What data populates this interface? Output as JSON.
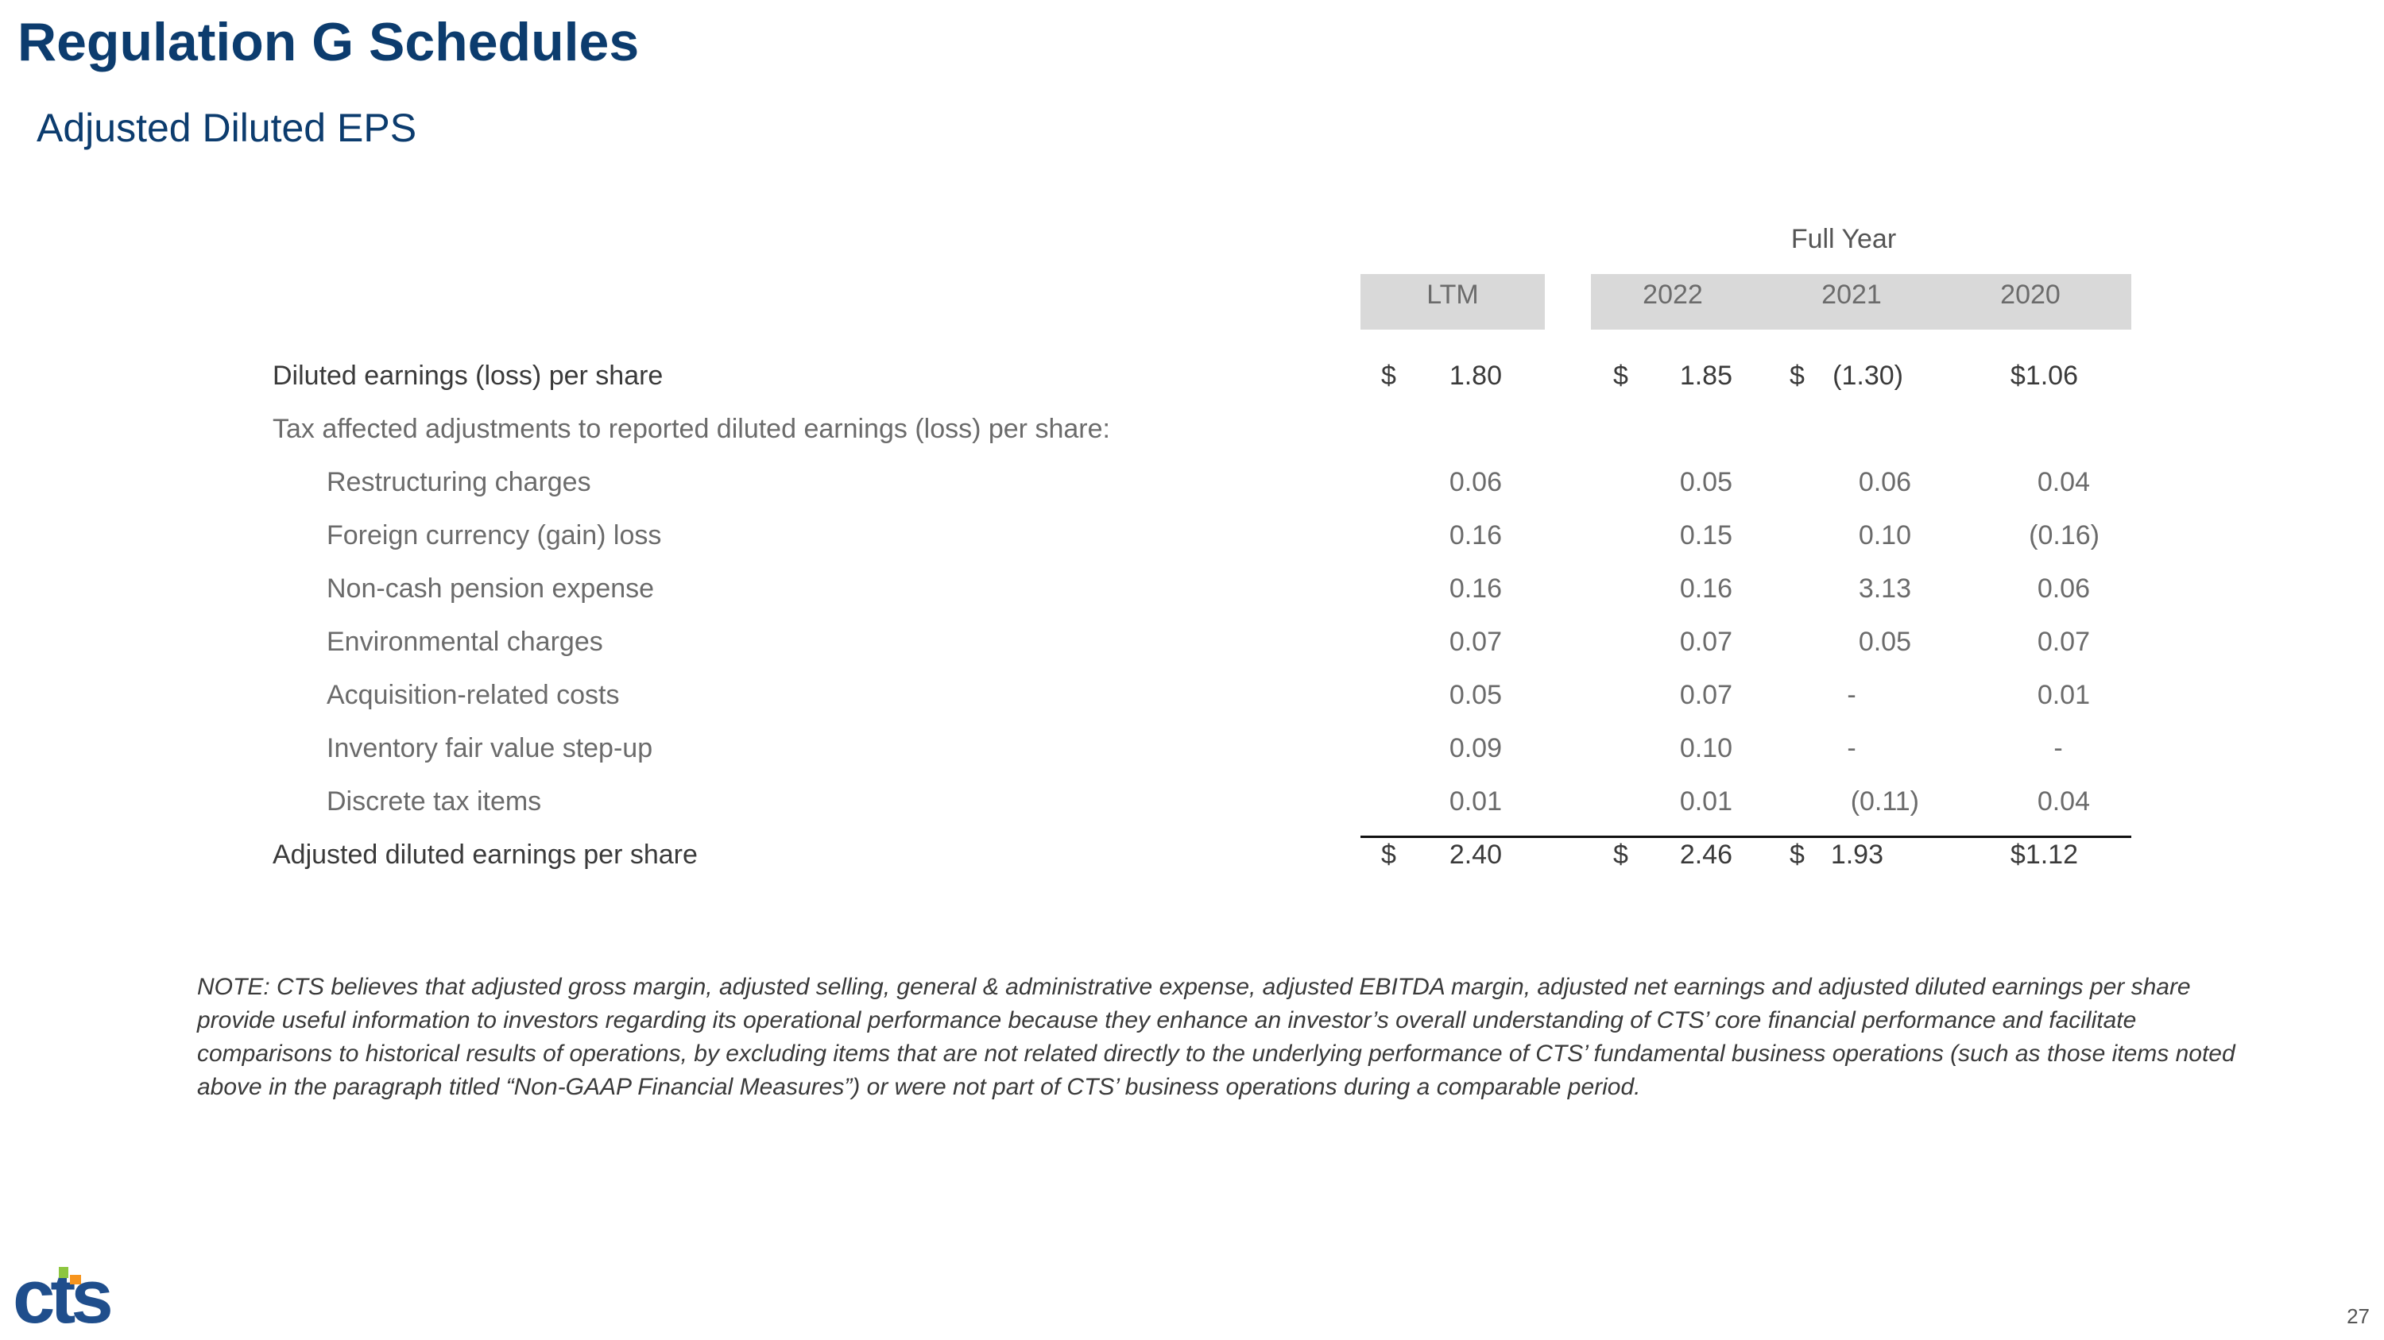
{
  "title": "Regulation G Schedules",
  "subtitle": "Adjusted Diluted EPS",
  "header": {
    "group_label": "Full Year",
    "columns": [
      "LTM",
      "2022",
      "2021",
      "2020"
    ]
  },
  "rows": [
    {
      "label": "Diluted earnings (loss) per share",
      "dollar": [
        "$",
        "$",
        "$",
        ""
      ],
      "values": [
        "1.80",
        "1.85",
        "(1.30)",
        "$1.06"
      ]
    },
    {
      "label": "Tax affected adjustments to reported diluted earnings (loss) per share:",
      "values": [
        "",
        "",
        "",
        ""
      ]
    },
    {
      "label": "Restructuring charges",
      "values": [
        "0.06",
        "0.05",
        "0.06",
        "0.04"
      ]
    },
    {
      "label": "Foreign currency (gain) loss",
      "values": [
        "0.16",
        "0.15",
        "0.10",
        "(0.16)"
      ]
    },
    {
      "label": "Non-cash pension expense",
      "values": [
        "0.16",
        "0.16",
        "3.13",
        "0.06"
      ]
    },
    {
      "label": "Environmental charges",
      "values": [
        "0.07",
        "0.07",
        "0.05",
        "0.07"
      ]
    },
    {
      "label": "Acquisition-related costs",
      "values": [
        "0.05",
        "0.07",
        "-",
        "0.01"
      ]
    },
    {
      "label": "Inventory fair value step-up",
      "values": [
        "0.09",
        "0.10",
        "-",
        "-"
      ]
    },
    {
      "label": "Discrete tax items",
      "values": [
        "0.01",
        "0.01",
        "(0.11)",
        "0.04"
      ]
    },
    {
      "label": "Adjusted diluted earnings per share",
      "dollar": [
        "$",
        "$",
        "$",
        ""
      ],
      "values": [
        "2.40",
        "2.46",
        "1.93",
        "$1.12"
      ]
    }
  ],
  "note": "NOTE: CTS believes that adjusted gross margin, adjusted selling, general & administrative expense, adjusted EBITDA margin, adjusted net earnings and adjusted diluted earnings per share provide useful information to investors regarding its operational performance because they enhance an investor’s overall understanding of CTS’ core financial performance and facilitate comparisons to historical results of operations, by excluding items that are not related directly to the underlying performance of CTS’ fundamental business operations (such as those items noted above in the paragraph titled “Non-GAAP Financial Measures”) or were not part of CTS’ business operations during a comparable period.",
  "logo_text": "cts",
  "logo_colors": {
    "blue": "#1f4e8c",
    "green": "#8dc63f",
    "orange": "#f7941d"
  },
  "page_number": "27"
}
